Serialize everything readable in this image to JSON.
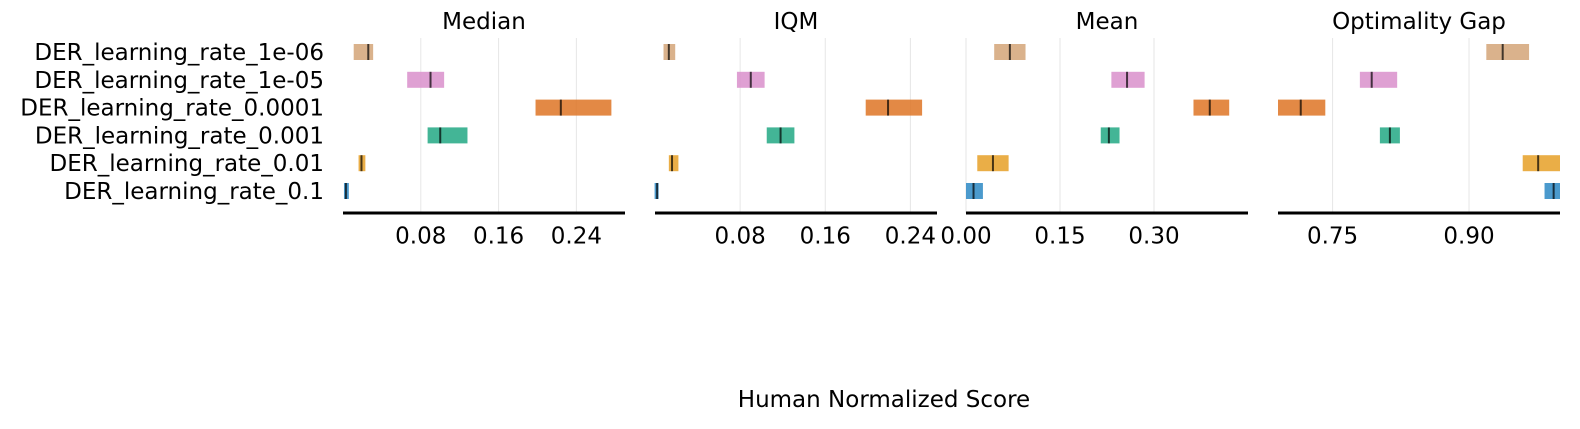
{
  "chart_data": {
    "type": "interval",
    "xlabel": "Human Normalized Score",
    "categories": [
      "DER_learning_rate_1e-06",
      "DER_learning_rate_1e-05",
      "DER_learning_rate_0.0001",
      "DER_learning_rate_0.001",
      "DER_learning_rate_0.01",
      "DER_learning_rate_0.1"
    ],
    "colors": [
      "#d4a478",
      "#d98fcb",
      "#de7424",
      "#22a884",
      "#e6a027",
      "#2b88c4"
    ],
    "grid": true,
    "panels": [
      {
        "title": "Median",
        "xlim": [
          0.0,
          0.29
        ],
        "ticks": [
          0.08,
          0.16,
          0.24
        ],
        "tick_labels": [
          "0.08",
          "0.16",
          "0.24"
        ],
        "point": [
          0.026,
          0.09,
          0.224,
          0.1,
          0.019,
          0.003
        ],
        "low": [
          0.011,
          0.066,
          0.198,
          0.087,
          0.016,
          0.001
        ],
        "high": [
          0.031,
          0.104,
          0.276,
          0.128,
          0.023,
          0.006
        ]
      },
      {
        "title": "IQM",
        "xlim": [
          0.0,
          0.265
        ],
        "ticks": [
          0.08,
          0.16,
          0.24
        ],
        "tick_labels": [
          "0.08",
          "0.16",
          "0.24"
        ],
        "point": [
          0.013,
          0.09,
          0.219,
          0.118,
          0.016,
          0.002
        ],
        "low": [
          0.008,
          0.077,
          0.198,
          0.105,
          0.013,
          0.0
        ],
        "high": [
          0.019,
          0.103,
          0.251,
          0.131,
          0.022,
          0.003
        ]
      },
      {
        "title": "Mean",
        "xlim": [
          0.0,
          0.45
        ],
        "ticks": [
          0.0,
          0.15,
          0.3
        ],
        "tick_labels": [
          "0.00",
          "0.15",
          "0.30"
        ],
        "point": [
          0.07,
          0.257,
          0.389,
          0.228,
          0.043,
          0.012
        ],
        "low": [
          0.045,
          0.232,
          0.363,
          0.215,
          0.018,
          0.0
        ],
        "high": [
          0.095,
          0.285,
          0.42,
          0.245,
          0.068,
          0.027
        ]
      },
      {
        "title": "Optimality Gap",
        "xlim": [
          0.69,
          1.0
        ],
        "ticks": [
          0.75,
          0.9
        ],
        "tick_labels": [
          "0.75",
          "0.90"
        ],
        "point": [
          0.937,
          0.793,
          0.715,
          0.813,
          0.976,
          0.993
        ],
        "low": [
          0.919,
          0.78,
          0.69,
          0.802,
          0.959,
          0.983
        ],
        "high": [
          0.966,
          0.821,
          0.742,
          0.824,
          1.0,
          1.0
        ]
      }
    ]
  }
}
